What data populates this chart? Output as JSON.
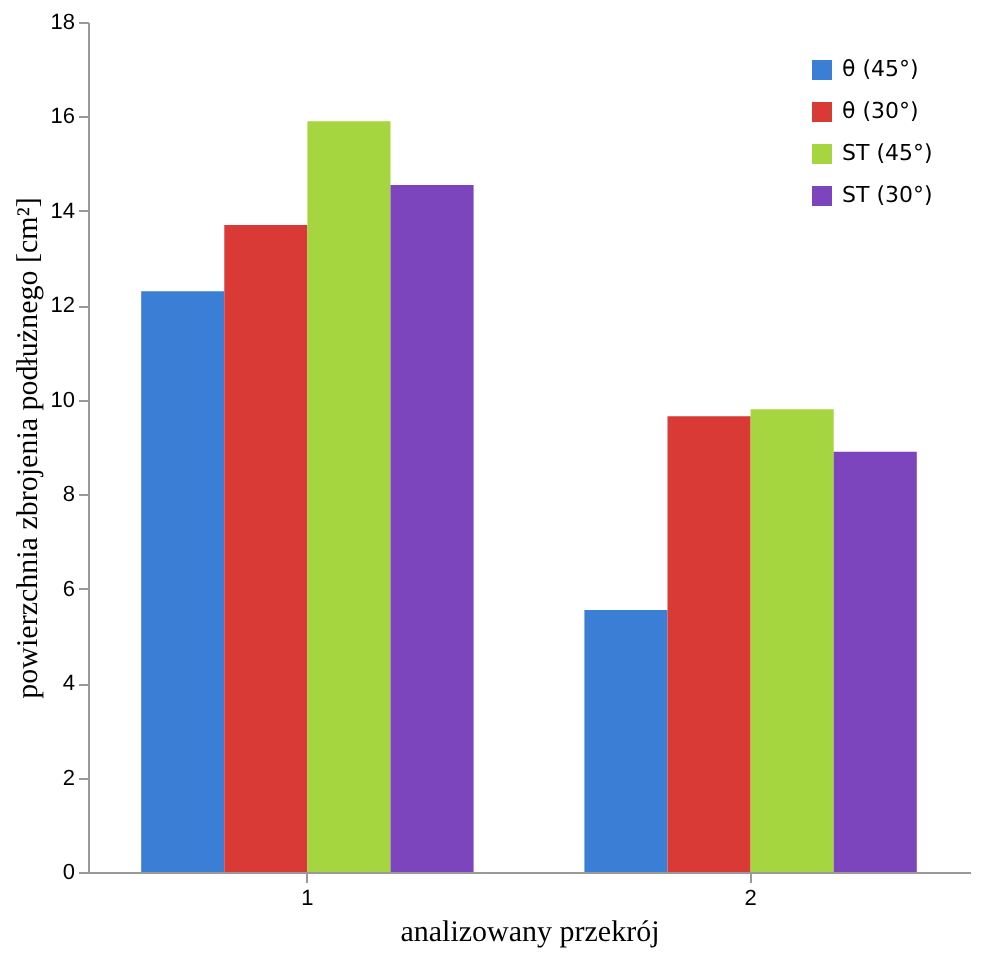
{
  "chart_data": {
    "type": "bar",
    "xlabel": "analizowany przekrój",
    "ylabel": "powierzchnia zbrojenia podłużnego [cm²]",
    "categories": [
      "1",
      "2"
    ],
    "series": [
      {
        "name": "θ (45°)",
        "color": "#3a7fd5",
        "values": [
          12.3,
          5.55
        ]
      },
      {
        "name": "θ (30°)",
        "color": "#d93a35",
        "values": [
          13.7,
          9.65
        ]
      },
      {
        "name": "ST (45°)",
        "color": "#a6d63f",
        "values": [
          15.9,
          9.8
        ]
      },
      {
        "name": "ST (30°)",
        "color": "#7d45bd",
        "values": [
          14.55,
          8.9
        ]
      }
    ],
    "ylim": [
      0,
      18
    ],
    "yticks": [
      0,
      2,
      4,
      6,
      8,
      10,
      12,
      14,
      16,
      18
    ],
    "grid": false,
    "legend": "top right"
  }
}
